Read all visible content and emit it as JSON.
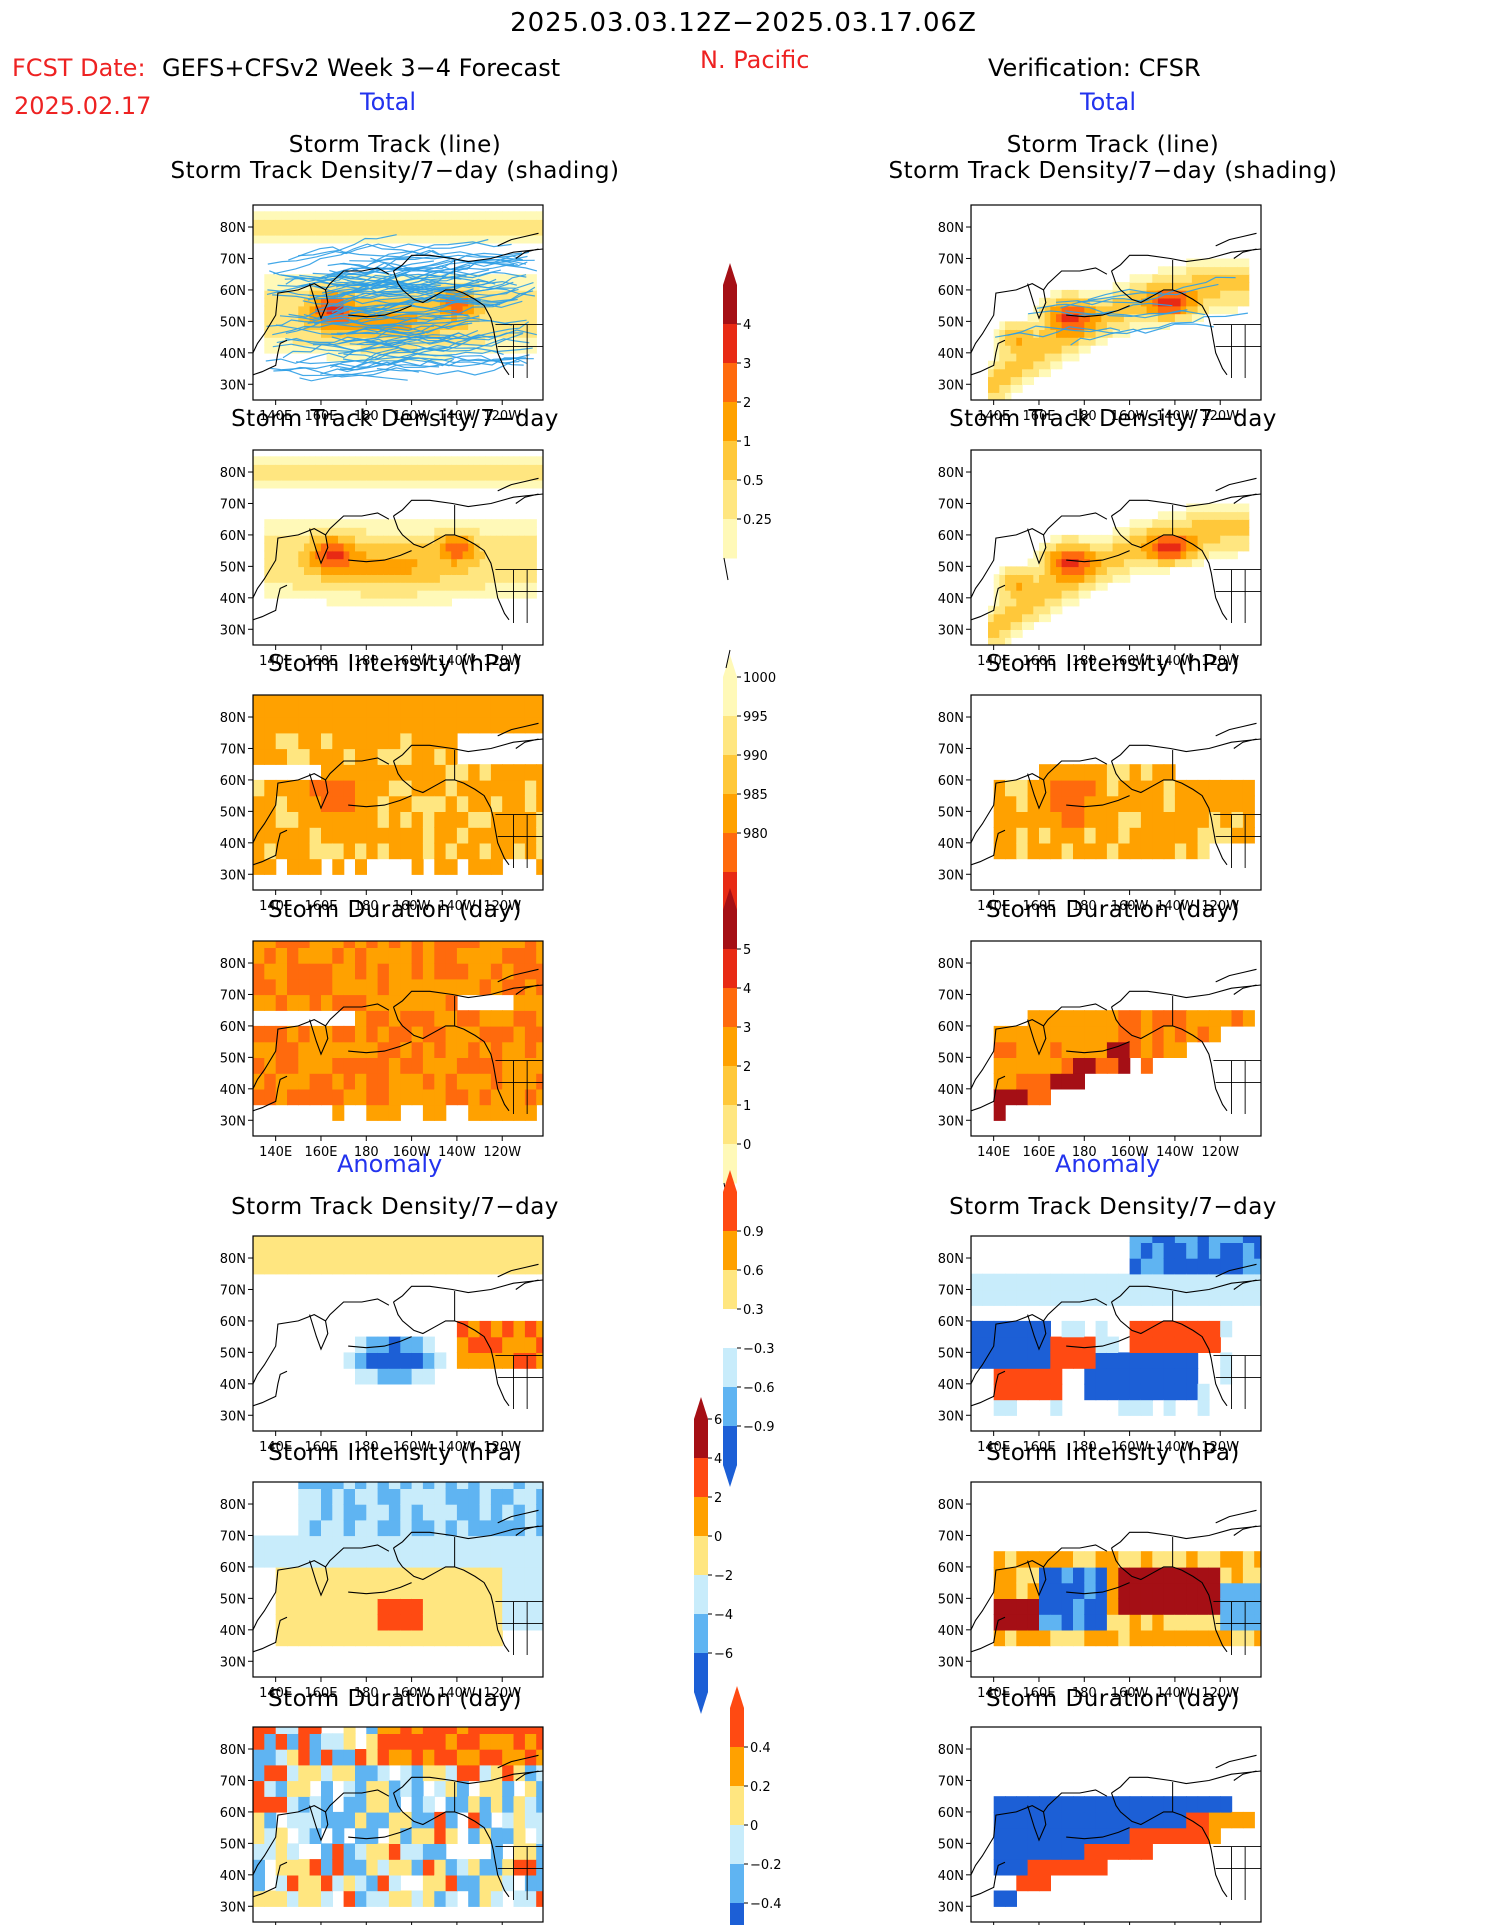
{
  "header": {
    "title": "2025.03.03.12Z−2025.03.17.06Z",
    "fcst_label": "FCST Date:",
    "fcst_date": "2025.02.17",
    "model": "GEFS+CFSv2 Week 3−4 Forecast",
    "region": "N. Pacific",
    "verification": "Verification: CFSR"
  },
  "sections": {
    "total": "Total",
    "anomaly": "Anomaly"
  },
  "panel_titles": {
    "track_line": "Storm Track (line)",
    "track_shading": "Storm Track Density/7−day (shading)",
    "density": "Storm Track Density/7−day",
    "intensity": "Storm Intensity (hPa)",
    "duration": "Storm Duration (day)"
  },
  "map_axes": {
    "x_ticks": [
      "140E",
      "160E",
      "180",
      "160W",
      "140W",
      "120W"
    ],
    "y_ticks": [
      "80N",
      "70N",
      "60N",
      "50N",
      "40N",
      "30N"
    ]
  },
  "colors": {
    "warm_scale": [
      "#fff9b8",
      "#ffe680",
      "#ffc83a",
      "#ffa100",
      "#ff6a0d",
      "#e82a14",
      "#a50f15"
    ],
    "anom_warm": [
      "#ffe680",
      "#ffa100",
      "#ff4a12"
    ],
    "anom_cool": [
      "#c8ecfb",
      "#5fb4f2",
      "#1c5fd6"
    ],
    "track_line": "#2f9fe6",
    "title_red": "#ee2222",
    "section_blue": "#2233ee"
  },
  "chart_data": [
    {
      "type": "heatmap",
      "panel": "forecast-total",
      "title": "Storm Track (line) / Storm Track Density/7−day (shading)",
      "colorbar": [
        "0.25",
        "0.5",
        "1",
        "2",
        "3",
        "4"
      ],
      "centers": [
        {
          "lon": 165,
          "lat": 54,
          "value": 3
        },
        {
          "lon": 220,
          "lat": 56,
          "value": 3
        }
      ]
    },
    {
      "type": "heatmap",
      "panel": "verification-total",
      "title": "Storm Track (line) / Storm Track Density/7−day (shading)",
      "colorbar": [
        "0.25",
        "0.5",
        "1",
        "2",
        "3",
        "4"
      ],
      "centers": [
        {
          "lon": 175,
          "lat": 52,
          "value": 4
        },
        {
          "lon": 220,
          "lat": 56,
          "value": 4
        }
      ]
    },
    {
      "type": "heatmap",
      "panel": "forecast-total",
      "title": "Storm Track Density/7−day",
      "colorbar": [
        "0.25",
        "0.5",
        "1",
        "2",
        "3",
        "4"
      ],
      "centers": [
        {
          "lon": 167,
          "lat": 53,
          "value": 3
        },
        {
          "lon": 220,
          "lat": 56,
          "value": 3
        }
      ]
    },
    {
      "type": "heatmap",
      "panel": "verification-total",
      "title": "Storm Track Density/7−day",
      "colorbar": [
        "0.25",
        "0.5",
        "1",
        "2",
        "3",
        "4"
      ],
      "centers": [
        {
          "lon": 173,
          "lat": 52,
          "value": 4
        },
        {
          "lon": 218,
          "lat": 55,
          "value": 4
        }
      ]
    },
    {
      "type": "heatmap",
      "panel": "forecast-total",
      "title": "Storm Intensity (hPa)",
      "colorbar": [
        "1000",
        "995",
        "990",
        "985",
        "980"
      ],
      "typical_value": 990
    },
    {
      "type": "heatmap",
      "panel": "verification-total",
      "title": "Storm Intensity (hPa)",
      "colorbar": [
        "1000",
        "995",
        "990",
        "985",
        "980"
      ],
      "typical_value": 985
    },
    {
      "type": "heatmap",
      "panel": "forecast-total",
      "title": "Storm Duration (day)",
      "colorbar": [
        "0",
        "1",
        "2",
        "3",
        "4",
        "5"
      ],
      "typical_value": 3
    },
    {
      "type": "heatmap",
      "panel": "verification-total",
      "title": "Storm Duration (day)",
      "colorbar": [
        "0",
        "1",
        "2",
        "3",
        "4",
        "5"
      ],
      "typical_value": 2
    },
    {
      "type": "heatmap",
      "panel": "forecast-anomaly",
      "title": "Storm Track Density/7−day",
      "colorbar": [
        "0.9",
        "0.6",
        "0.3",
        "−0.3",
        "−0.6",
        "−0.9"
      ],
      "min_region": {
        "lon": 190,
        "lat": 48,
        "value": -0.9
      }
    },
    {
      "type": "heatmap",
      "panel": "verification-anomaly",
      "title": "Storm Track Density/7−day",
      "colorbar": [
        "0.9",
        "0.6",
        "0.3",
        "−0.3",
        "−0.6",
        "−0.9"
      ],
      "max_region": {
        "lon": 215,
        "lat": 56,
        "value": 0.9
      }
    },
    {
      "type": "heatmap",
      "panel": "forecast-anomaly",
      "title": "Storm Intensity (hPa)",
      "colorbar": [
        "6",
        "4",
        "2",
        "0",
        "−2",
        "−4",
        "−6"
      ],
      "max_region": {
        "lon": 195,
        "lat": 45,
        "value": 6
      }
    },
    {
      "type": "heatmap",
      "panel": "verification-anomaly",
      "title": "Storm Intensity (hPa)",
      "colorbar": [
        "6",
        "4",
        "2",
        "0",
        "−2",
        "−4",
        "−6"
      ],
      "max_region": {
        "lon": 215,
        "lat": 53,
        "value": 6
      }
    },
    {
      "type": "heatmap",
      "panel": "forecast-anomaly",
      "title": "Storm Duration (day)",
      "colorbar": [
        "0.4",
        "0.2",
        "0",
        "−0.2",
        "−0.4"
      ]
    },
    {
      "type": "heatmap",
      "panel": "verification-anomaly",
      "title": "Storm Duration (day)",
      "colorbar": [
        "0.4",
        "0.2",
        "0",
        "−0.2",
        "−0.4"
      ]
    }
  ]
}
